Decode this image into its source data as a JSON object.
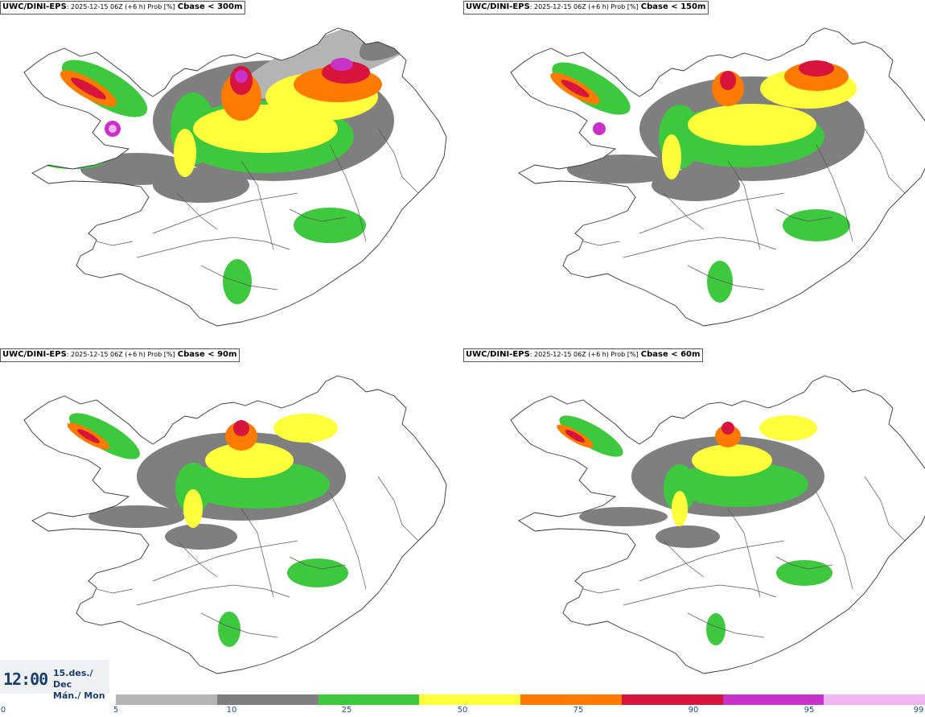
{
  "panels": [
    {
      "model": "UWC/DINI-EPS",
      "run": ": 2025-12-15 06Z (+6 h) Prob [%]",
      "variable": "Cbase < 300m"
    },
    {
      "model": "UWC/DINI-EPS",
      "run": ": 2025-12-15 06Z (+6 h) Prob [%]",
      "variable": "Cbase < 150m"
    },
    {
      "model": "UWC/DINI-EPS",
      "run": ": 2025-12-15 06Z (+6 h) Prob [%]",
      "variable": "Cbase < 90m"
    },
    {
      "model": "UWC/DINI-EPS",
      "run": ": 2025-12-15 06Z (+6 h) Prob [%]",
      "variable": "Cbase < 60m"
    }
  ],
  "time": {
    "clock": "12:00",
    "date_line": "15.des./ Dec",
    "day_line": "Mán./ Mon"
  },
  "legend": {
    "ticks": [
      "0",
      "5",
      "10",
      "25",
      "50",
      "75",
      "90",
      "95",
      "99"
    ],
    "colors": [
      "#b4b4b4",
      "#7f7f7f",
      "#3ec83e",
      "#ffff3c",
      "#ff7a00",
      "#d6143c",
      "#c832c8",
      "#f0b4f0"
    ]
  }
}
